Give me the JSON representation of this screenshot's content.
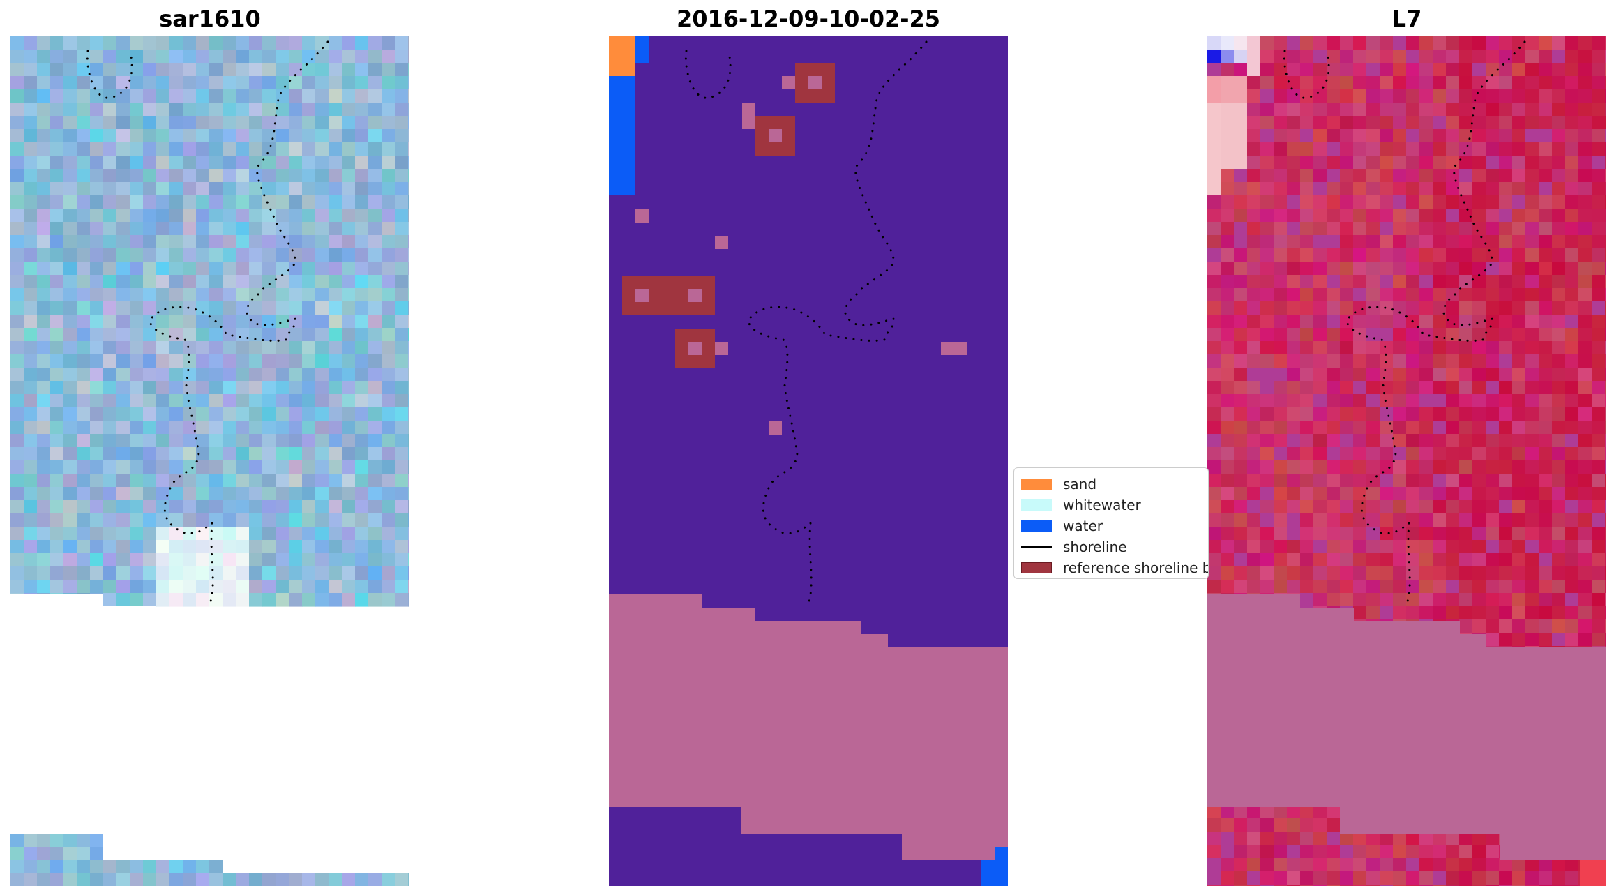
{
  "panels": [
    {
      "title": "sar1610"
    },
    {
      "title": "2016-12-09-10-02-25"
    },
    {
      "title": "L7"
    }
  ],
  "legend": {
    "items": [
      {
        "label": "sand",
        "color": "#ff8c3b",
        "kind": "patch"
      },
      {
        "label": "whitewater",
        "color": "#c8fafa",
        "kind": "patch"
      },
      {
        "label": "water",
        "color": "#0b5cf7",
        "kind": "patch"
      },
      {
        "label": "shoreline",
        "color": "#000000",
        "kind": "line"
      },
      {
        "label": "reference shoreline buffer",
        "color": "#a02a36",
        "kind": "patch-outline"
      }
    ]
  },
  "colors": {
    "sar_base": "#84b2d2",
    "classified_background": "#50219a",
    "nodata_mask": "#ba6796",
    "l7_base": "#c7245a",
    "shoreline_dots": "#000000"
  },
  "icons": [
    "shoreline-dotted-line"
  ]
}
